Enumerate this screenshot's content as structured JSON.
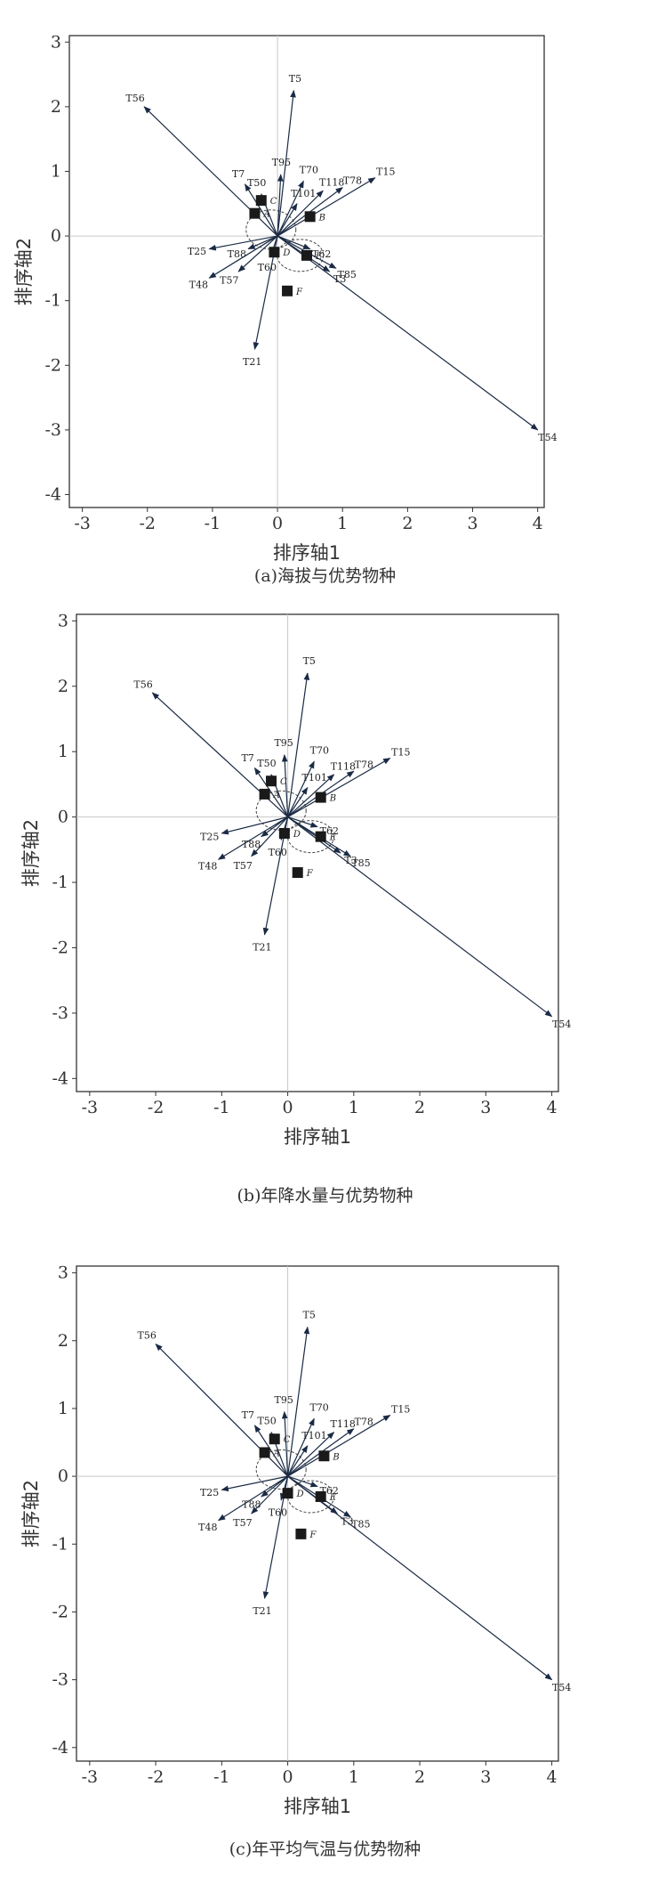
{
  "chart_data": [
    {
      "type": "scatter",
      "title": "",
      "caption": "(a)海拔与优势物种",
      "xlabel": "排序轴1",
      "ylabel": "排序轴2",
      "xlim": [
        -3.2,
        4.1
      ],
      "ylim": [
        -4.2,
        3.1
      ],
      "xticks": [
        "-3",
        "-2",
        "-1",
        "0",
        "1",
        "2",
        "3",
        "4"
      ],
      "yticks": [
        "3",
        "2",
        "1",
        "0",
        "-1",
        "-2",
        "-3",
        "-4"
      ],
      "arrows": [
        {
          "label": "T5",
          "x": 0.25,
          "y": 2.25
        },
        {
          "label": "T56",
          "x": -2.05,
          "y": 2.0
        },
        {
          "label": "T54",
          "x": 4.0,
          "y": -3.0
        },
        {
          "label": "T15",
          "x": 1.5,
          "y": 0.9
        },
        {
          "label": "T78",
          "x": 1.0,
          "y": 0.75
        },
        {
          "label": "T118",
          "x": 0.7,
          "y": 0.7
        },
        {
          "label": "T70",
          "x": 0.4,
          "y": 0.85
        },
        {
          "label": "T101",
          "x": 0.3,
          "y": 0.5
        },
        {
          "label": "T95",
          "x": 0.05,
          "y": 0.95
        },
        {
          "label": "T50",
          "x": -0.25,
          "y": 0.65
        },
        {
          "label": "T7",
          "x": -0.5,
          "y": 0.8
        },
        {
          "label": "T25",
          "x": -1.05,
          "y": -0.2
        },
        {
          "label": "T88",
          "x": -0.45,
          "y": -0.2
        },
        {
          "label": "T60",
          "x": -0.1,
          "y": -0.3
        },
        {
          "label": "T48",
          "x": -1.05,
          "y": -0.65
        },
        {
          "label": "T57",
          "x": -0.6,
          "y": -0.55
        },
        {
          "label": "T21",
          "x": -0.35,
          "y": -1.75
        },
        {
          "label": "T62",
          "x": 0.5,
          "y": -0.2
        },
        {
          "label": "T3",
          "x": 0.8,
          "y": -0.55
        },
        {
          "label": "T85",
          "x": 0.9,
          "y": -0.5
        }
      ],
      "sites": [
        {
          "label": "A",
          "x": -0.35,
          "y": 0.35
        },
        {
          "label": "C",
          "x": -0.25,
          "y": 0.55
        },
        {
          "label": "B",
          "x": 0.5,
          "y": 0.3
        },
        {
          "label": "D",
          "x": -0.05,
          "y": -0.25
        },
        {
          "label": "E",
          "x": 0.45,
          "y": -0.3
        },
        {
          "label": "F",
          "x": 0.15,
          "y": -0.85
        }
      ]
    },
    {
      "type": "scatter",
      "title": "",
      "caption": "(b)年降水量与优势物种",
      "xlabel": "排序轴1",
      "ylabel": "排序轴2",
      "xlim": [
        -3.2,
        4.1
      ],
      "ylim": [
        -4.2,
        3.1
      ],
      "xticks": [
        "-3",
        "-2",
        "-1",
        "0",
        "1",
        "2",
        "3",
        "4"
      ],
      "yticks": [
        "3",
        "2",
        "1",
        "0",
        "-1",
        "-2",
        "-3",
        "-4"
      ],
      "arrows": [
        {
          "label": "T5",
          "x": 0.3,
          "y": 2.2
        },
        {
          "label": "T56",
          "x": -2.05,
          "y": 1.9
        },
        {
          "label": "T54",
          "x": 4.0,
          "y": -3.05
        },
        {
          "label": "T15",
          "x": 1.55,
          "y": 0.9
        },
        {
          "label": "T78",
          "x": 1.0,
          "y": 0.7
        },
        {
          "label": "T118",
          "x": 0.7,
          "y": 0.65
        },
        {
          "label": "T70",
          "x": 0.4,
          "y": 0.85
        },
        {
          "label": "T101",
          "x": 0.3,
          "y": 0.45
        },
        {
          "label": "T95",
          "x": -0.05,
          "y": 0.95
        },
        {
          "label": "T50",
          "x": -0.25,
          "y": 0.65
        },
        {
          "label": "T7",
          "x": -0.5,
          "y": 0.75
        },
        {
          "label": "T25",
          "x": -1.0,
          "y": -0.25
        },
        {
          "label": "T88",
          "x": -0.4,
          "y": -0.3
        },
        {
          "label": "T60",
          "x": -0.1,
          "y": -0.35
        },
        {
          "label": "T48",
          "x": -1.05,
          "y": -0.65
        },
        {
          "label": "T57",
          "x": -0.55,
          "y": -0.6
        },
        {
          "label": "T21",
          "x": -0.35,
          "y": -1.8
        },
        {
          "label": "T62",
          "x": 0.45,
          "y": -0.15
        },
        {
          "label": "T3",
          "x": 0.8,
          "y": -0.55
        },
        {
          "label": "T85",
          "x": 0.95,
          "y": -0.6
        }
      ],
      "sites": [
        {
          "label": "A",
          "x": -0.35,
          "y": 0.35
        },
        {
          "label": "C",
          "x": -0.25,
          "y": 0.55
        },
        {
          "label": "B",
          "x": 0.5,
          "y": 0.3
        },
        {
          "label": "D",
          "x": -0.05,
          "y": -0.25
        },
        {
          "label": "E",
          "x": 0.5,
          "y": -0.3
        },
        {
          "label": "F",
          "x": 0.15,
          "y": -0.85
        }
      ]
    },
    {
      "type": "scatter",
      "title": "",
      "caption": "(c)年平均气温与优势物种",
      "xlabel": "排序轴1",
      "ylabel": "排序轴2",
      "xlim": [
        -3.2,
        4.1
      ],
      "ylim": [
        -4.2,
        3.1
      ],
      "xticks": [
        "-3",
        "-2",
        "-1",
        "0",
        "1",
        "2",
        "3",
        "4"
      ],
      "yticks": [
        "3",
        "2",
        "1",
        "0",
        "-1",
        "-2",
        "-3",
        "-4"
      ],
      "arrows": [
        {
          "label": "T5",
          "x": 0.3,
          "y": 2.2
        },
        {
          "label": "T56",
          "x": -2.0,
          "y": 1.95
        },
        {
          "label": "T54",
          "x": 4.0,
          "y": -3.0
        },
        {
          "label": "T15",
          "x": 1.55,
          "y": 0.9
        },
        {
          "label": "T78",
          "x": 1.0,
          "y": 0.7
        },
        {
          "label": "T118",
          "x": 0.7,
          "y": 0.65
        },
        {
          "label": "T70",
          "x": 0.4,
          "y": 0.85
        },
        {
          "label": "T101",
          "x": 0.3,
          "y": 0.45
        },
        {
          "label": "T95",
          "x": -0.05,
          "y": 0.95
        },
        {
          "label": "T50",
          "x": -0.25,
          "y": 0.65
        },
        {
          "label": "T7",
          "x": -0.5,
          "y": 0.75
        },
        {
          "label": "T25",
          "x": -1.0,
          "y": -0.2
        },
        {
          "label": "T88",
          "x": -0.4,
          "y": -0.3
        },
        {
          "label": "T60",
          "x": -0.1,
          "y": -0.35
        },
        {
          "label": "T48",
          "x": -1.05,
          "y": -0.65
        },
        {
          "label": "T57",
          "x": -0.55,
          "y": -0.55
        },
        {
          "label": "T21",
          "x": -0.35,
          "y": -1.8
        },
        {
          "label": "T62",
          "x": 0.45,
          "y": -0.15
        },
        {
          "label": "T3",
          "x": 0.75,
          "y": -0.55
        },
        {
          "label": "T85",
          "x": 0.95,
          "y": -0.6
        }
      ],
      "sites": [
        {
          "label": "A",
          "x": -0.35,
          "y": 0.35
        },
        {
          "label": "C",
          "x": -0.2,
          "y": 0.55
        },
        {
          "label": "B",
          "x": 0.55,
          "y": 0.3
        },
        {
          "label": "D",
          "x": 0.0,
          "y": -0.25
        },
        {
          "label": "E",
          "x": 0.5,
          "y": -0.3
        },
        {
          "label": "F",
          "x": 0.2,
          "y": -0.85
        }
      ]
    }
  ]
}
